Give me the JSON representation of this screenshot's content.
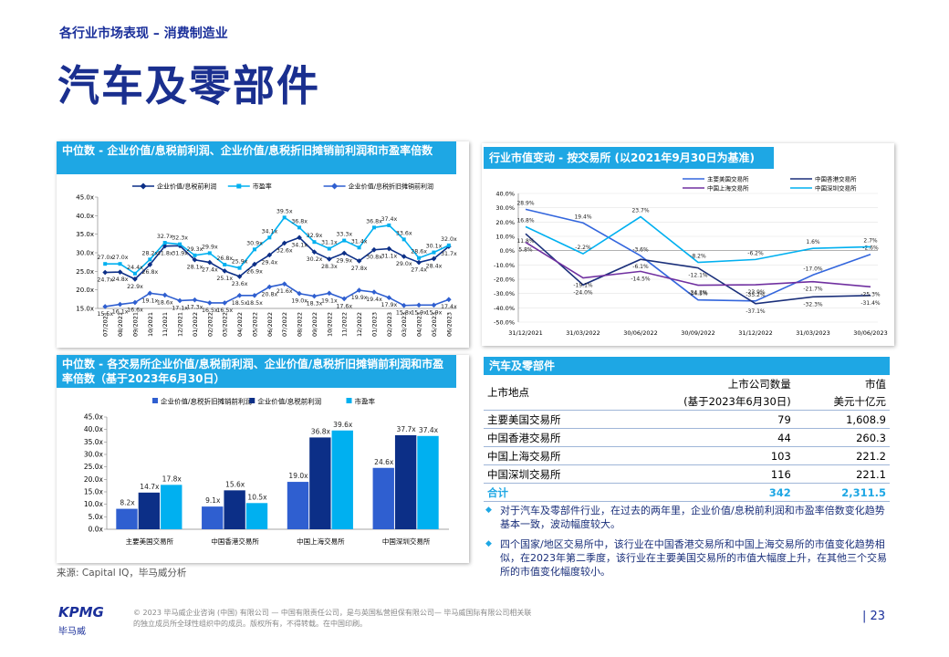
{
  "header": {
    "section": "各行业市场表现 – 消费制造业",
    "title": "汽车及零部件"
  },
  "chart_data": [
    {
      "type": "line",
      "title": "中位数 - 企业价值/息税前利润、企业价值/息税折旧摊销前利润和市盈率倍数",
      "categories": [
        "07/2021",
        "08/2021",
        "09/2021",
        "10/2021",
        "11/2021",
        "12/2021",
        "01/2022",
        "02/2022",
        "03/2022",
        "04/2022",
        "05/2022",
        "06/2022",
        "07/2022",
        "08/2022",
        "09/2022",
        "10/2022",
        "11/2022",
        "12/2022",
        "01/2023",
        "02/2023",
        "03/2023",
        "04/2023",
        "05/2023",
        "06/2023"
      ],
      "series": [
        {
          "name": "企业价值/息税前利润",
          "color": "#0c2f87",
          "marker": "diamond",
          "values": [
            24.7,
            24.8,
            22.9,
            26.8,
            31.8,
            31.9,
            28.1,
            27.4,
            25.1,
            23.6,
            26.9,
            29.4,
            32.6,
            34.1,
            30.2,
            28.3,
            29.9,
            27.8,
            30.8,
            31.1,
            29.0,
            27.4,
            28.4,
            31.7
          ],
          "value_labels": [
            "24.7x",
            "24.8x",
            "22.9x",
            "26.8x",
            "31.8x",
            "31.9x",
            "28.1x",
            "27.4x",
            "25.1x",
            "23.6x",
            "26.9x",
            "29.4x",
            "32.6x",
            "34.1x",
            "30.2x",
            "28.3x",
            "29.9x",
            "27.8x",
            "30.8x",
            "31.1x",
            "29.0x",
            "27.4x",
            "28.4x",
            "31.7x"
          ]
        },
        {
          "name": "市盈率",
          "color": "#00b0f0",
          "marker": "square",
          "values": [
            27.0,
            27.0,
            24.4,
            28.2,
            32.7,
            32.3,
            29.3,
            29.9,
            26.8,
            25.9,
            30.9,
            34.1,
            39.5,
            36.8,
            32.9,
            31.1,
            33.3,
            31.4,
            36.8,
            37.4,
            33.6,
            28.6,
            30.1,
            32.0
          ],
          "value_labels": [
            "27.0x",
            "27.0x",
            "24.4x",
            "28.2x",
            "32.7x",
            "32.3x",
            "29.3x",
            "29.9x",
            "26.8x",
            "25.9x",
            "30.9x",
            "34.1x",
            "39.5x",
            "36.8x",
            "32.9x",
            "31.1x",
            "33.3x",
            "31.4x",
            "36.8x",
            "37.4x",
            "33.6x",
            "28.6x",
            "30.1x",
            "32.0x"
          ]
        },
        {
          "name": "企业价值/息税折旧摊销前利润",
          "color": "#2f5fd0",
          "marker": "diamond",
          "values": [
            15.5,
            16.1,
            16.6,
            19.1,
            18.6,
            17.1,
            17.3,
            16.5,
            16.5,
            18.5,
            18.5,
            20.8,
            21.6,
            19.0,
            18.3,
            19.1,
            17.6,
            19.9,
            19.4,
            17.9,
            15.8,
            15.9,
            15.9,
            17.4
          ],
          "value_labels": [
            "15.5x",
            "16.1x",
            "16.6x",
            "19.1x",
            "18.6x",
            "17.1x",
            "17.3x",
            "16.5x",
            "16.5x",
            "18.5x",
            "18.5x",
            "20.8x",
            "21.6x",
            "19.0x",
            "18.3x",
            "19.1x",
            "17.6x",
            "19.9x",
            "19.4x",
            "17.9x",
            "15.8x",
            "15.9x",
            "15.9x",
            "17.4x"
          ]
        }
      ],
      "ylim": [
        15,
        45
      ],
      "yticks": [
        {
          "value": 15,
          "label": "15.0x"
        },
        {
          "value": 20,
          "label": "20.0x"
        },
        {
          "value": 25,
          "label": "25.0x"
        },
        {
          "value": 30,
          "label": "30.0x"
        },
        {
          "value": 35,
          "label": "35.0x"
        },
        {
          "value": 40,
          "label": "40.0x"
        },
        {
          "value": 45,
          "label": "45.0x"
        }
      ],
      "grid": false
    },
    {
      "type": "line",
      "title": "行业市值变动 - 按交易所 (以2021年9月30日为基准)",
      "categories": [
        "31/12/2021",
        "31/03/2022",
        "30/06/2022",
        "30/09/2022",
        "31/12/2022",
        "31/03/2023",
        "30/06/2023"
      ],
      "series": [
        {
          "name": "主要美国交易所",
          "color": "#3366dd",
          "values": [
            28.9,
            19.4,
            -3.6,
            -34.5,
            -35.2,
            -17.0,
            -2.6
          ],
          "value_labels": [
            "28.9%",
            "19.4%",
            "-3.6%",
            "-34.5%",
            "-35.2%",
            "-17.0%",
            "-2.6%"
          ]
        },
        {
          "name": "中国香港交易所",
          "color": "#1a2f7a",
          "values": [
            11.8,
            -24.0,
            -6.1,
            -12.1,
            -37.1,
            -32.3,
            -31.4
          ],
          "value_labels": [
            "11.8%",
            "-24.0%",
            "-6.1%",
            "-12.1%",
            "-37.1%",
            "-32.3%",
            "-31.4%"
          ]
        },
        {
          "name": "中国上海交易所",
          "color": "#7030a0",
          "values": [
            5.8,
            -19.1,
            -14.5,
            -24.2,
            -23.9,
            -21.7,
            -25.3
          ],
          "value_labels": [
            "5.8%",
            "-19.1%",
            "-14.5%",
            "-24.2%",
            "-23.9%",
            "-21.7%",
            "-25.3%"
          ]
        },
        {
          "name": "中国深圳交易所",
          "color": "#00b0f0",
          "values": [
            16.8,
            -2.2,
            23.7,
            -8.2,
            -6.2,
            1.6,
            2.7
          ],
          "value_labels": [
            "16.8%",
            "-2.2%",
            "23.7%",
            "-8.2%",
            "-6.2%",
            "1.6%",
            "2.7%"
          ]
        }
      ],
      "ylim": [
        -50,
        40
      ],
      "yticks": [
        {
          "value": -50,
          "label": "-50.0%"
        },
        {
          "value": -40,
          "label": "-40.0%"
        },
        {
          "value": -30,
          "label": "-30.0%"
        },
        {
          "value": -20,
          "label": "-20.0%"
        },
        {
          "value": -10,
          "label": "-10.0%"
        },
        {
          "value": 0,
          "label": "0.0%"
        },
        {
          "value": 10,
          "label": "10.0%"
        },
        {
          "value": 20,
          "label": "20.0%"
        },
        {
          "value": 30,
          "label": "30.0%"
        },
        {
          "value": 40,
          "label": "40.0%"
        }
      ],
      "grid": true
    },
    {
      "type": "bar",
      "title": "中位数 - 各交易所企业价值/息税前利润、企业价值/息税折旧摊销前利润和市盈率倍数（基于2023年6月30日）",
      "categories": [
        "主要美国交易所",
        "中国香港交易所",
        "中国上海交易所",
        "中国深圳交易所"
      ],
      "series": [
        {
          "name": "企业价值/息税折旧摊销前利润",
          "color": "#2f5fd0",
          "values": [
            8.2,
            9.1,
            19.0,
            24.6
          ],
          "value_labels": [
            "8.2x",
            "9.1x",
            "19.0x",
            "24.6x"
          ]
        },
        {
          "name": "企业价值/息税前利润",
          "color": "#0c2f87",
          "values": [
            14.7,
            15.6,
            36.8,
            37.7
          ],
          "value_labels": [
            "14.7x",
            "15.6x",
            "36.8x",
            "37.7x"
          ]
        },
        {
          "name": "市盈率",
          "color": "#00b0f0",
          "values": [
            17.8,
            10.5,
            39.6,
            37.4
          ],
          "value_labels": [
            "17.8x",
            "10.5x",
            "39.6x",
            "37.4x"
          ]
        }
      ],
      "ylim": [
        0,
        45
      ],
      "yticks": [
        {
          "value": 0,
          "label": "0.0x"
        },
        {
          "value": 5,
          "label": "5.0x"
        },
        {
          "value": 10,
          "label": "10.0x"
        },
        {
          "value": 15,
          "label": "15.0x"
        },
        {
          "value": 20,
          "label": "20.0x"
        },
        {
          "value": 25,
          "label": "25.0x"
        },
        {
          "value": 30,
          "label": "30.0x"
        },
        {
          "value": 35,
          "label": "35.0x"
        },
        {
          "value": 40,
          "label": "40.0x"
        },
        {
          "value": 45,
          "label": "45.0x"
        }
      ],
      "grid": false
    }
  ],
  "table": {
    "title": "汽车及零部件",
    "header": {
      "location": "上市地点",
      "count": [
        "上市公司数量",
        "(基于2023年6月30日)"
      ],
      "value": [
        "市值",
        "美元十亿元"
      ]
    },
    "rows": [
      [
        "主要美国交易所",
        "79",
        "1,608.9"
      ],
      [
        "中国香港交易所",
        "44",
        "260.3"
      ],
      [
        "中国上海交易所",
        "103",
        "221.2"
      ],
      [
        "中国深圳交易所",
        "116",
        "221.1"
      ]
    ],
    "total": [
      "合计",
      "342",
      "2,311.5"
    ]
  },
  "bullets": [
    "对于汽车及零部件行业，在过去的两年里，企业价值/息税前利润和市盈率倍数变化趋势基本一致，波动幅度较大。",
    "四个国家/地区交易所中，该行业在中国香港交易所和中国上海交易所的市值变化趋势相似，在2023年第二季度，该行业在主要美国交易所的市值大幅度上升，在其他三个交易所的市值变化幅度较小。"
  ],
  "source": "来源: Capital IQ，毕马威分析",
  "footer": {
    "logo": "KPMG",
    "logo_cn": "毕马威",
    "copyright": [
      "© 2023 毕马威企业咨询 (中国) 有限公司 — 中国有限责任公司，是与英国私营担保有限公司— 毕马威国际有限公司相关联",
      "的独立成员所全球性组织中的成员。版权所有，不得转载。在中国印刷。"
    ],
    "page": "23"
  }
}
